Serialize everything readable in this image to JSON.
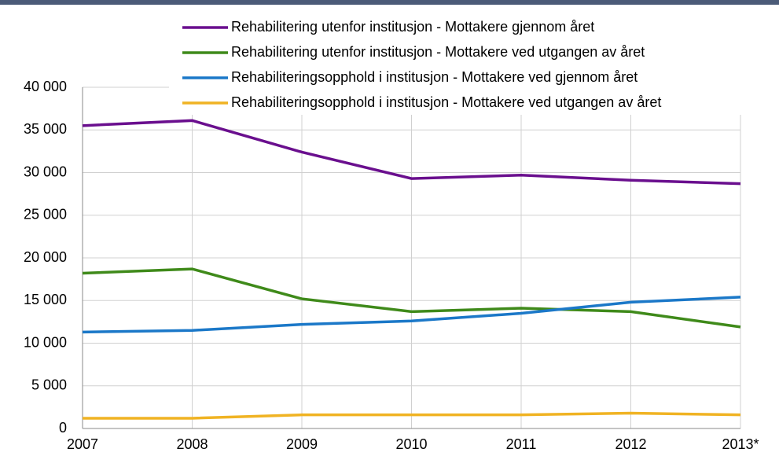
{
  "chart_data": {
    "type": "line",
    "categories": [
      "2007",
      "2008",
      "2009",
      "2010",
      "2011",
      "2012",
      "2013*"
    ],
    "series": [
      {
        "name": "Rehabilitering utenfor institusjon - Mottakere gjennom året",
        "color": "#6a0f8e",
        "values": [
          35500,
          36100,
          32400,
          29300,
          29700,
          29100,
          28700
        ]
      },
      {
        "name": "Rehabilitering utenfor institusjon - Mottakere ved utgangen av året",
        "color": "#3f8a1a",
        "values": [
          18200,
          18700,
          15200,
          13700,
          14100,
          13700,
          11900
        ]
      },
      {
        "name": "Rehabiliteringsopphold i institusjon - Mottakere ved gjennom året",
        "color": "#1b78c8",
        "values": [
          11300,
          11500,
          12200,
          12600,
          13500,
          14800,
          15400
        ]
      },
      {
        "name": "Rehabiliteringsopphold i institusjon - Mottakere ved utgangen av året",
        "color": "#f0b323",
        "values": [
          1200,
          1200,
          1600,
          1600,
          1600,
          1800,
          1600
        ]
      }
    ],
    "ylim": [
      0,
      40000
    ],
    "yticks": [
      0,
      {
        "value": 5000,
        "label": "5 000"
      },
      {
        "value": 10000,
        "label": "10 000"
      },
      {
        "value": 15000,
        "label": "15 000"
      },
      {
        "value": 20000,
        "label": "20 000"
      },
      {
        "value": 25000,
        "label": "25 000"
      },
      {
        "value": 30000,
        "label": "30 000"
      },
      {
        "value": 35000,
        "label": "35 000"
      },
      {
        "value": 40000,
        "label": "40 000"
      }
    ],
    "grid": true
  }
}
